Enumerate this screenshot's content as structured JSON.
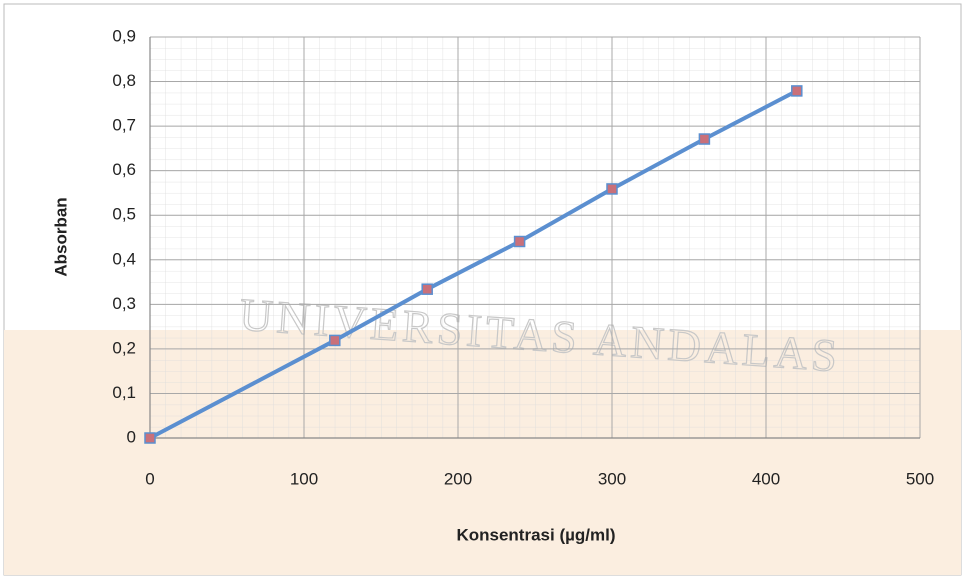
{
  "chart_data": {
    "type": "line",
    "x_label": "Konsentrasi (µg/ml)",
    "y_label": "Absorban",
    "watermark": "UNIVERSITAS ANDALAS",
    "x": [
      0,
      120,
      180,
      240,
      300,
      360,
      420
    ],
    "series": [
      {
        "color": "#5b8fd0",
        "marker_color": "#c9707a",
        "values": [
          0,
          0.219,
          0.334,
          0.441,
          0.559,
          0.671,
          0.779
        ]
      }
    ],
    "xlim": [
      0,
      500
    ],
    "xticks": [
      0,
      100,
      200,
      300,
      400,
      500
    ],
    "ylim": [
      0,
      0.9
    ],
    "yticks": [
      0,
      {
        "value": 0.1,
        "label": "0,1"
      },
      {
        "value": 0.2,
        "label": "0,2"
      },
      {
        "value": 0.3,
        "label": "0,3"
      },
      {
        "value": 0.4,
        "label": "0,4"
      },
      {
        "value": 0.5,
        "label": "0,5"
      },
      {
        "value": 0.6,
        "label": "0,6"
      },
      {
        "value": 0.7,
        "label": "0,7"
      },
      {
        "value": 0.8,
        "label": "0,8"
      },
      {
        "value": 0.9,
        "label": "0,9"
      }
    ],
    "grid": true
  }
}
